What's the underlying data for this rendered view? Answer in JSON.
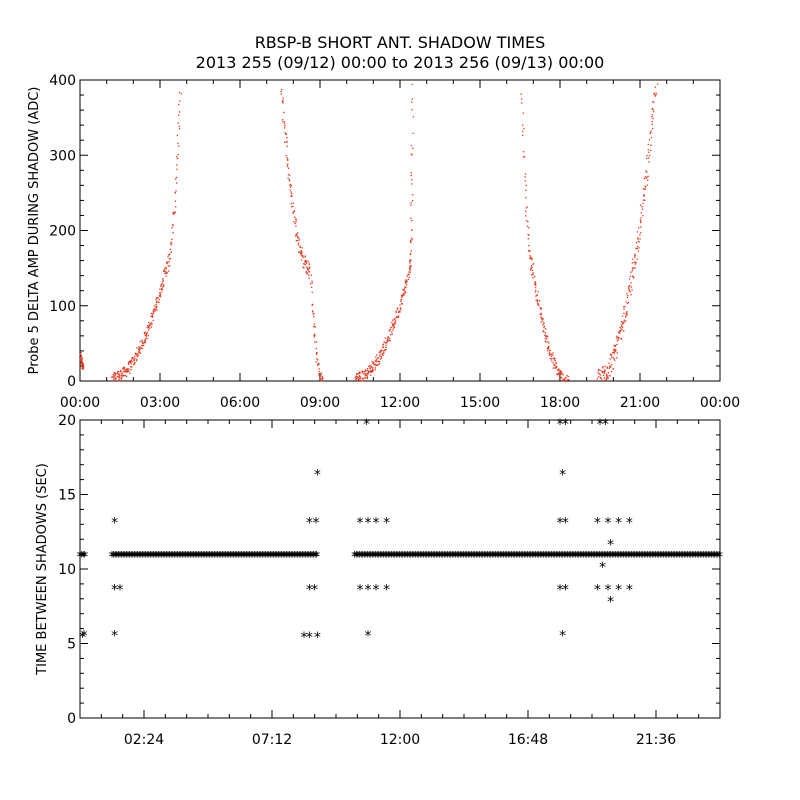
{
  "title": "RBSP-B SHORT ANT. SHADOW TIMES",
  "subtitle": "2013 255 (09/12) 00:00 to 2013 256 (09/13) 00:00",
  "chart_data": [
    {
      "type": "scatter",
      "ylabel": "Probe 5 DELTA AMP DURING SHADOW (ADC)",
      "xlim": [
        "00:00",
        "24:00"
      ],
      "ylim": [
        0,
        400
      ],
      "x_ticks": [
        "00:00",
        "03:00",
        "06:00",
        "09:00",
        "12:00",
        "15:00",
        "18:00",
        "21:00",
        "00:00"
      ],
      "y_ticks": [
        0,
        100,
        200,
        300,
        400
      ],
      "marker_color": "#e8341c",
      "segments": [
        {
          "x_start_h": 0.0,
          "x_end_h": 0.1,
          "y_start": 35,
          "y_end": 20
        },
        {
          "x_start_h": 1.2,
          "x_end_h": 3.2,
          "y_start": 5,
          "y_end": 150
        },
        {
          "x_start_h": 3.2,
          "x_end_h": 3.75,
          "y_start": 150,
          "y_end": 400
        },
        {
          "x_start_h": 7.5,
          "x_end_h": 8.6,
          "y_start": 400,
          "y_end": 150
        },
        {
          "x_start_h": 8.6,
          "x_end_h": 9.1,
          "y_start": 150,
          "y_end": 0
        },
        {
          "x_start_h": 10.3,
          "x_end_h": 12.35,
          "y_start": 5,
          "y_end": 150
        },
        {
          "x_start_h": 12.35,
          "x_end_h": 12.45,
          "y_start": 150,
          "y_end": 390
        },
        {
          "x_start_h": 16.55,
          "x_end_h": 16.95,
          "y_start": 390,
          "y_end": 150
        },
        {
          "x_start_h": 16.95,
          "x_end_h": 18.3,
          "y_start": 150,
          "y_end": 0
        },
        {
          "x_start_h": 19.4,
          "x_end_h": 21.6,
          "y_start": 5,
          "y_end": 400
        }
      ]
    },
    {
      "type": "scatter",
      "ylabel": "TIME BETWEEN SHADOWS (SEC)",
      "xlim": [
        "00:00",
        "24:00"
      ],
      "ylim": [
        0,
        20
      ],
      "x_ticks": [
        "02:24",
        "07:12",
        "12:00",
        "16:48",
        "21:36"
      ],
      "y_ticks": [
        0,
        5,
        10,
        15,
        20
      ],
      "marker": "asterisk",
      "baseline_value": 10.9,
      "baseline_ranges_h": [
        [
          0.0,
          0.2
        ],
        [
          1.2,
          8.9
        ],
        [
          10.3,
          24.0
        ]
      ],
      "points": [
        {
          "x": 0.1,
          "y": 5.5
        },
        {
          "x": 0.15,
          "y": 5.6
        },
        {
          "x": 1.3,
          "y": 13.2
        },
        {
          "x": 1.3,
          "y": 8.7
        },
        {
          "x": 1.5,
          "y": 8.7
        },
        {
          "x": 1.3,
          "y": 5.6
        },
        {
          "x": 8.6,
          "y": 8.7
        },
        {
          "x": 8.8,
          "y": 8.7
        },
        {
          "x": 8.6,
          "y": 13.2
        },
        {
          "x": 8.85,
          "y": 13.2
        },
        {
          "x": 8.9,
          "y": 16.4
        },
        {
          "x": 8.4,
          "y": 5.5
        },
        {
          "x": 8.6,
          "y": 5.5
        },
        {
          "x": 8.9,
          "y": 5.5
        },
        {
          "x": 10.5,
          "y": 13.2
        },
        {
          "x": 10.8,
          "y": 13.2
        },
        {
          "x": 11.1,
          "y": 13.2
        },
        {
          "x": 11.5,
          "y": 13.2
        },
        {
          "x": 10.5,
          "y": 8.7
        },
        {
          "x": 10.8,
          "y": 8.7
        },
        {
          "x": 11.1,
          "y": 8.7
        },
        {
          "x": 11.5,
          "y": 8.7
        },
        {
          "x": 10.75,
          "y": 19.8
        },
        {
          "x": 10.8,
          "y": 5.6
        },
        {
          "x": 18.0,
          "y": 19.8
        },
        {
          "x": 18.2,
          "y": 19.8
        },
        {
          "x": 18.1,
          "y": 16.4
        },
        {
          "x": 18.0,
          "y": 13.2
        },
        {
          "x": 18.2,
          "y": 13.2
        },
        {
          "x": 18.0,
          "y": 8.7
        },
        {
          "x": 18.2,
          "y": 8.7
        },
        {
          "x": 18.1,
          "y": 5.6
        },
        {
          "x": 19.5,
          "y": 19.8
        },
        {
          "x": 19.7,
          "y": 19.8
        },
        {
          "x": 19.4,
          "y": 13.2
        },
        {
          "x": 19.8,
          "y": 13.2
        },
        {
          "x": 20.2,
          "y": 13.2
        },
        {
          "x": 20.6,
          "y": 13.2
        },
        {
          "x": 19.4,
          "y": 8.7
        },
        {
          "x": 19.8,
          "y": 8.7
        },
        {
          "x": 20.2,
          "y": 8.7
        },
        {
          "x": 20.6,
          "y": 8.7
        },
        {
          "x": 19.9,
          "y": 11.7
        },
        {
          "x": 19.6,
          "y": 10.2
        },
        {
          "x": 19.9,
          "y": 7.9
        }
      ]
    }
  ]
}
